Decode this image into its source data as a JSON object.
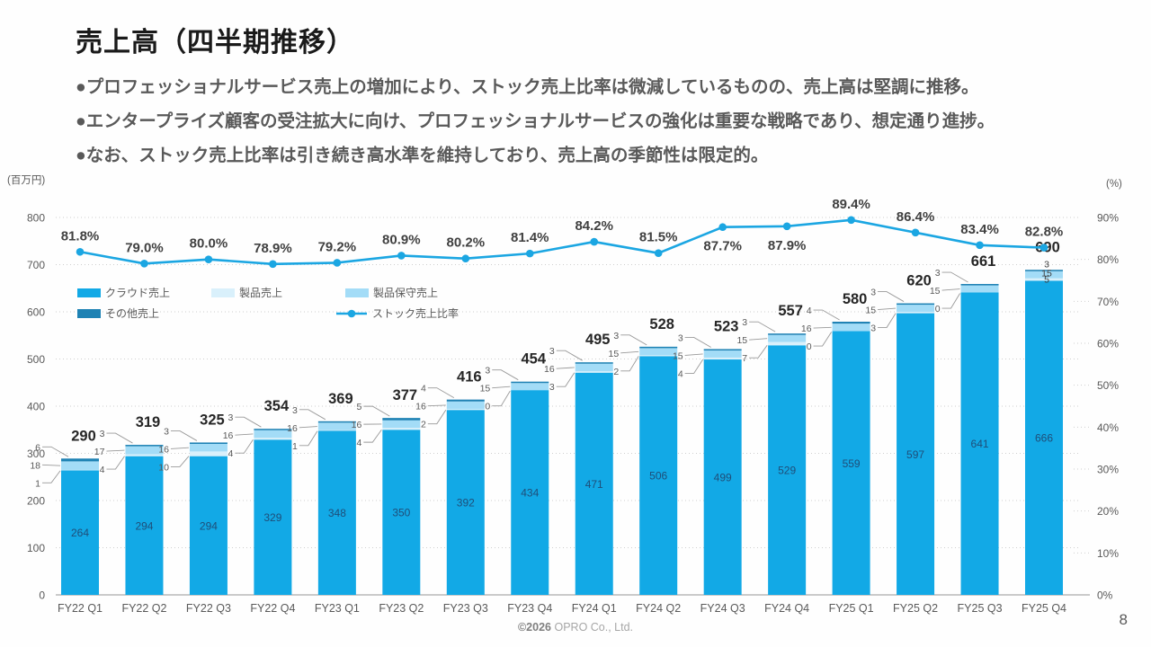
{
  "slide": {
    "title": "売上高（四半期推移）",
    "bullets": [
      "●プロフェッショナルサービス売上の増加により、ストック売上比率は微減しているものの、売上高は堅調に推移。",
      "●エンタープライズ顧客の受注拡大に向け、プロフェッショナルサービスの強化は重要な戦略であり、想定通り進捗。",
      "●なお、ストック売上比率は引き続き高水準を維持しており、売上高の季節性は限定的。"
    ],
    "footer": {
      "year": "©2026",
      "company": "OPRO Co., Ltd."
    },
    "page_number": "8"
  },
  "chart_data": {
    "type": "combo: stacked-bar + line",
    "title": "",
    "left_axis": {
      "caption": "(百万円)",
      "min": 0,
      "max": 800,
      "step": 100
    },
    "right_axis": {
      "caption": "(%)",
      "min": 0,
      "max": 90,
      "step": 10
    },
    "grid": "dotted horizontal gridlines",
    "legend_rows": [
      [
        "cloud",
        "product",
        "maintenance"
      ],
      [
        "other",
        "stock-ratio"
      ]
    ],
    "categories": [
      "FY22 Q1",
      "FY22 Q2",
      "FY22 Q3",
      "FY22 Q4",
      "FY23 Q1",
      "FY23 Q2",
      "FY23 Q3",
      "FY23 Q4",
      "FY24 Q1",
      "FY24 Q2",
      "FY24 Q3",
      "FY24 Q4",
      "FY25 Q1",
      "FY25 Q2",
      "FY25 Q3",
      "FY25 Q4"
    ],
    "bar_series": [
      {
        "key": "cloud",
        "name": "クラウド売上",
        "color": "#12a9e6",
        "values": [
          264,
          294,
          294,
          329,
          348,
          350,
          392,
          434,
          471,
          506,
          499,
          529,
          559,
          597,
          641,
          666
        ]
      },
      {
        "key": "product",
        "name": "製品売上",
        "color": "#d9f0fb",
        "values": [
          1,
          4,
          10,
          4,
          1,
          4,
          2,
          0,
          3,
          2,
          4,
          7,
          0,
          3,
          0,
          5
        ]
      },
      {
        "key": "maintenance",
        "name": "製品保守売上",
        "color": "#a3dcf7",
        "values": [
          18,
          17,
          16,
          16,
          16,
          16,
          16,
          15,
          16,
          15,
          15,
          15,
          16,
          15,
          15,
          15
        ]
      },
      {
        "key": "other",
        "name": "その他売上",
        "color": "#1e82b4",
        "values": [
          6,
          3,
          3,
          3,
          3,
          5,
          4,
          3,
          3,
          3,
          3,
          3,
          4,
          3,
          3,
          3
        ]
      }
    ],
    "totals": [
      290,
      319,
      325,
      354,
      369,
      377,
      416,
      454,
      495,
      528,
      523,
      557,
      580,
      620,
      661,
      690
    ],
    "line_series": {
      "key": "stock-ratio",
      "name": "ストック売上比率",
      "color": "#1ba6e2",
      "values": [
        81.8,
        79.0,
        80.0,
        78.9,
        79.2,
        80.9,
        80.2,
        81.4,
        84.2,
        81.5,
        87.7,
        87.9,
        89.4,
        86.4,
        83.4,
        82.8
      ],
      "label_below_indices": [
        10,
        11
      ]
    }
  }
}
